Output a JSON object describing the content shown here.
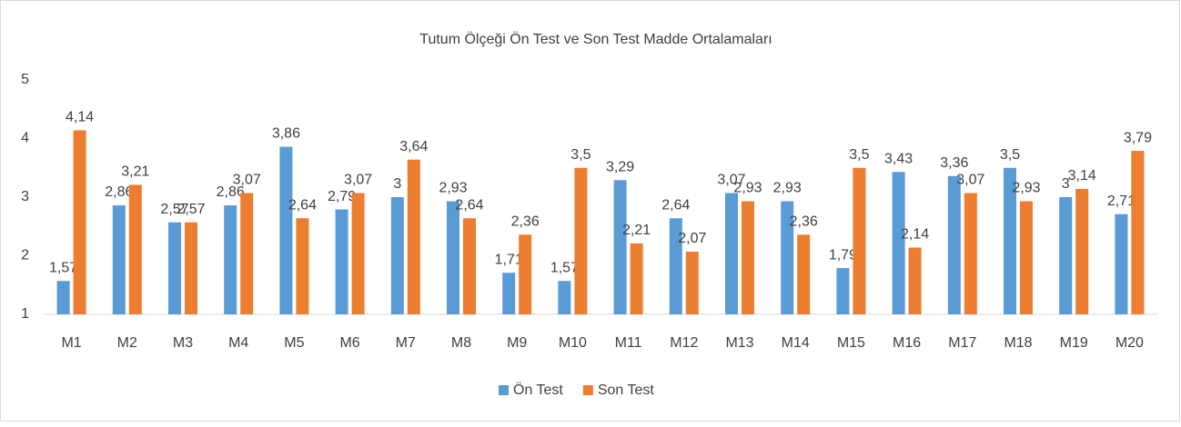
{
  "chart_data": {
    "type": "bar",
    "title": "Tutum Ölçeği Ön Test ve Son Test Madde Ortalamaları",
    "categories": [
      "M1",
      "M2",
      "M3",
      "M4",
      "M5",
      "M6",
      "M7",
      "M8",
      "M9",
      "M10",
      "M11",
      "M12",
      "M13",
      "M14",
      "M15",
      "M16",
      "M17",
      "M18",
      "M19",
      "M20"
    ],
    "series": [
      {
        "name": "Ön Test",
        "color": "#5b9bd5",
        "values": [
          1.57,
          2.86,
          2.57,
          2.86,
          3.86,
          2.79,
          3,
          2.93,
          1.71,
          1.57,
          3.29,
          2.64,
          3.07,
          2.93,
          1.79,
          3.43,
          3.36,
          3.5,
          3,
          2.71
        ],
        "value_labels": [
          "1,57",
          "2,86",
          "2,57",
          "2,86",
          "3,86",
          "2,79",
          "3",
          "2,93",
          "1,71",
          "1,57",
          "3,29",
          "2,64",
          "3,07",
          "2,93",
          "1,79",
          "3,43",
          "3,36",
          "3,5",
          "3",
          "2,71"
        ]
      },
      {
        "name": "Son Test",
        "color": "#ed7d31",
        "values": [
          4.14,
          3.21,
          2.57,
          3.07,
          2.64,
          3.07,
          3.64,
          2.64,
          2.36,
          3.5,
          2.21,
          2.07,
          2.93,
          2.36,
          3.5,
          2.14,
          3.07,
          2.93,
          3.14,
          3.79
        ],
        "value_labels": [
          "4,14",
          "3,21",
          "2,57",
          "3,07",
          "2,64",
          "3,07",
          "3,64",
          "2,64",
          "2,36",
          "3,5",
          "2,21",
          "2,07",
          "2,93",
          "2,36",
          "3,5",
          "2,14",
          "3,07",
          "2,93",
          "3,14",
          "3,79"
        ]
      }
    ],
    "ylim": [
      1,
      5
    ],
    "yticks": [
      1,
      2,
      3,
      4,
      5
    ],
    "grid": false,
    "legend": "bottom"
  }
}
